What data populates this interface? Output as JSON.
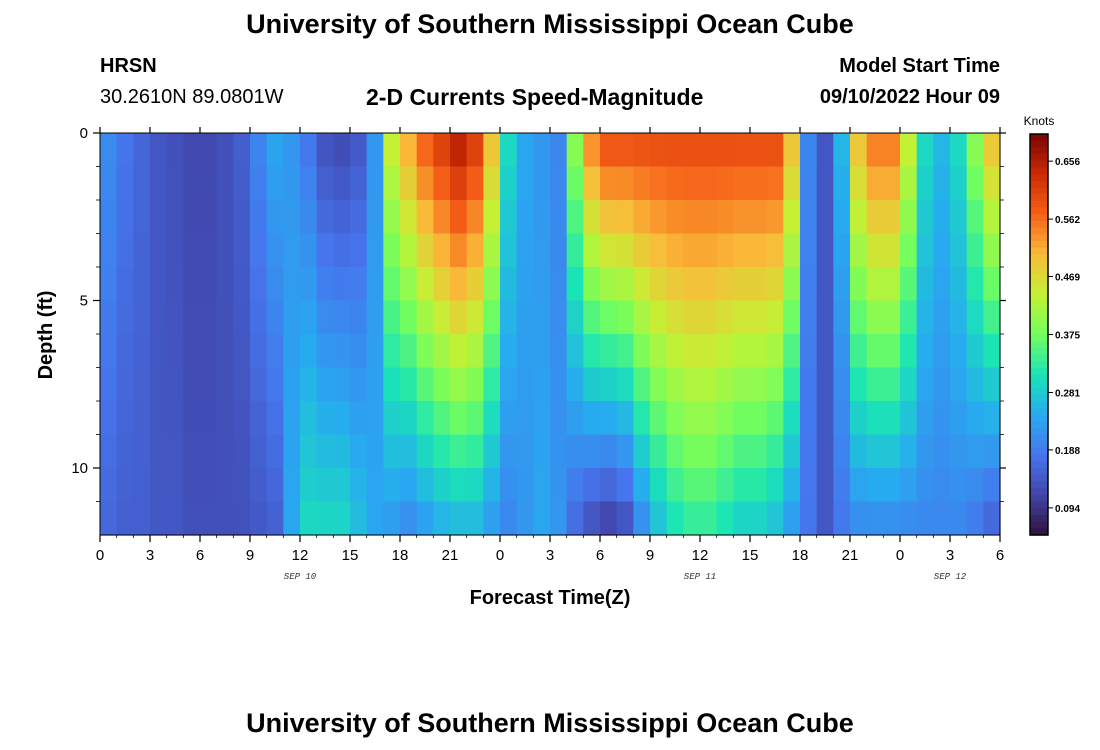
{
  "header": {
    "title": "University of Southern Mississippi Ocean Cube",
    "station": "HRSN",
    "coordinates": "30.2610N  89.0801W",
    "subtitle": "2-D Currents Speed-Magnitude",
    "model_start_label": "Model Start Time",
    "model_start_value": "09/10/2022 Hour 09"
  },
  "footer": {
    "title": "University of Southern Mississippi Ocean Cube"
  },
  "chart_data": {
    "type": "heatmap",
    "title": "2-D Currents Speed-Magnitude",
    "xlabel": "Forecast Time(Z)",
    "ylabel": "Depth (ft)",
    "x_unit": "forecast hours (0 = 00Z SEP 10)",
    "xlim": [
      0,
      54
    ],
    "ylim": [
      0,
      12
    ],
    "y_inverted": true,
    "x_ticks": [
      0,
      3,
      6,
      9,
      12,
      15,
      18,
      21,
      24,
      27,
      30,
      33,
      36,
      39,
      42,
      45,
      48,
      51,
      54
    ],
    "x_tick_labels": [
      "0",
      "3",
      "6",
      "9",
      "12",
      "15",
      "18",
      "21",
      "0",
      "3",
      "6",
      "9",
      "12",
      "15",
      "18",
      "21",
      "0",
      "3",
      "6"
    ],
    "y_ticks": [
      0,
      5,
      10
    ],
    "y_tick_labels": [
      "0",
      "5",
      "10"
    ],
    "date_labels": [
      {
        "hour": 12,
        "label": "SEP 10"
      },
      {
        "hour": 36,
        "label": "SEP 11"
      },
      {
        "hour": 51,
        "label": "SEP 12"
      }
    ],
    "colorbar": {
      "label": "Knots",
      "min": 0.05,
      "max": 0.7,
      "ticks": [
        0.094,
        0.188,
        0.281,
        0.375,
        0.469,
        0.562,
        0.656
      ],
      "tick_labels": [
        "0.094",
        "0.188",
        "0.281",
        "0.375",
        "0.469",
        "0.562",
        "0.656"
      ]
    },
    "time_hours": [
      0,
      1,
      2,
      3,
      4,
      5,
      6,
      7,
      8,
      9,
      10,
      11,
      12,
      13,
      14,
      15,
      16,
      17,
      18,
      19,
      20,
      21,
      22,
      23,
      24,
      25,
      26,
      27,
      28,
      29,
      30,
      31,
      32,
      33,
      34,
      35,
      36,
      37,
      38,
      39,
      40,
      41,
      42,
      43,
      44,
      45,
      46,
      47,
      48,
      49,
      50,
      51,
      52,
      53,
      54
    ],
    "depths_ft": [
      0,
      1,
      2,
      3,
      4,
      5,
      6,
      7,
      8,
      9,
      10,
      11,
      12
    ],
    "speed_surface_knots": [
      0.21,
      0.18,
      0.16,
      0.14,
      0.13,
      0.12,
      0.12,
      0.13,
      0.15,
      0.2,
      0.24,
      0.22,
      0.18,
      0.13,
      0.12,
      0.14,
      0.22,
      0.45,
      0.52,
      0.58,
      0.62,
      0.66,
      0.62,
      0.5,
      0.3,
      0.24,
      0.22,
      0.2,
      0.4,
      0.55,
      0.6,
      0.6,
      0.6,
      0.6,
      0.6,
      0.6,
      0.6,
      0.6,
      0.6,
      0.6,
      0.6,
      0.5,
      0.2,
      0.14,
      0.26,
      0.5,
      0.56,
      0.56,
      0.45,
      0.3,
      0.26,
      0.3,
      0.4,
      0.5,
      0.55
    ],
    "speed_bottom_knots": [
      0.16,
      0.15,
      0.15,
      0.14,
      0.14,
      0.13,
      0.13,
      0.13,
      0.13,
      0.14,
      0.15,
      0.24,
      0.3,
      0.3,
      0.3,
      0.27,
      0.24,
      0.22,
      0.2,
      0.22,
      0.24,
      0.25,
      0.25,
      0.22,
      0.2,
      0.22,
      0.24,
      0.22,
      0.16,
      0.12,
      0.1,
      0.12,
      0.2,
      0.26,
      0.3,
      0.32,
      0.32,
      0.3,
      0.28,
      0.28,
      0.26,
      0.22,
      0.18,
      0.14,
      0.18,
      0.2,
      0.2,
      0.2,
      0.2,
      0.2,
      0.2,
      0.2,
      0.18,
      0.15,
      0.1
    ]
  }
}
